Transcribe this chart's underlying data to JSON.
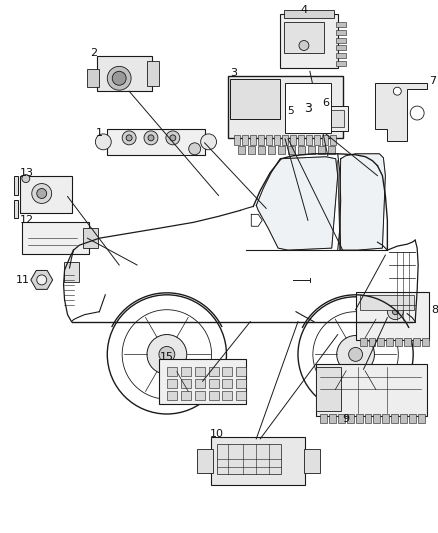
{
  "title": "",
  "background_color": "#ffffff",
  "fig_width": 4.38,
  "fig_height": 5.33,
  "dpi": 100,
  "line_color": "#1a1a1a",
  "label_color": "#111111",
  "label_fontsize": 7.5
}
